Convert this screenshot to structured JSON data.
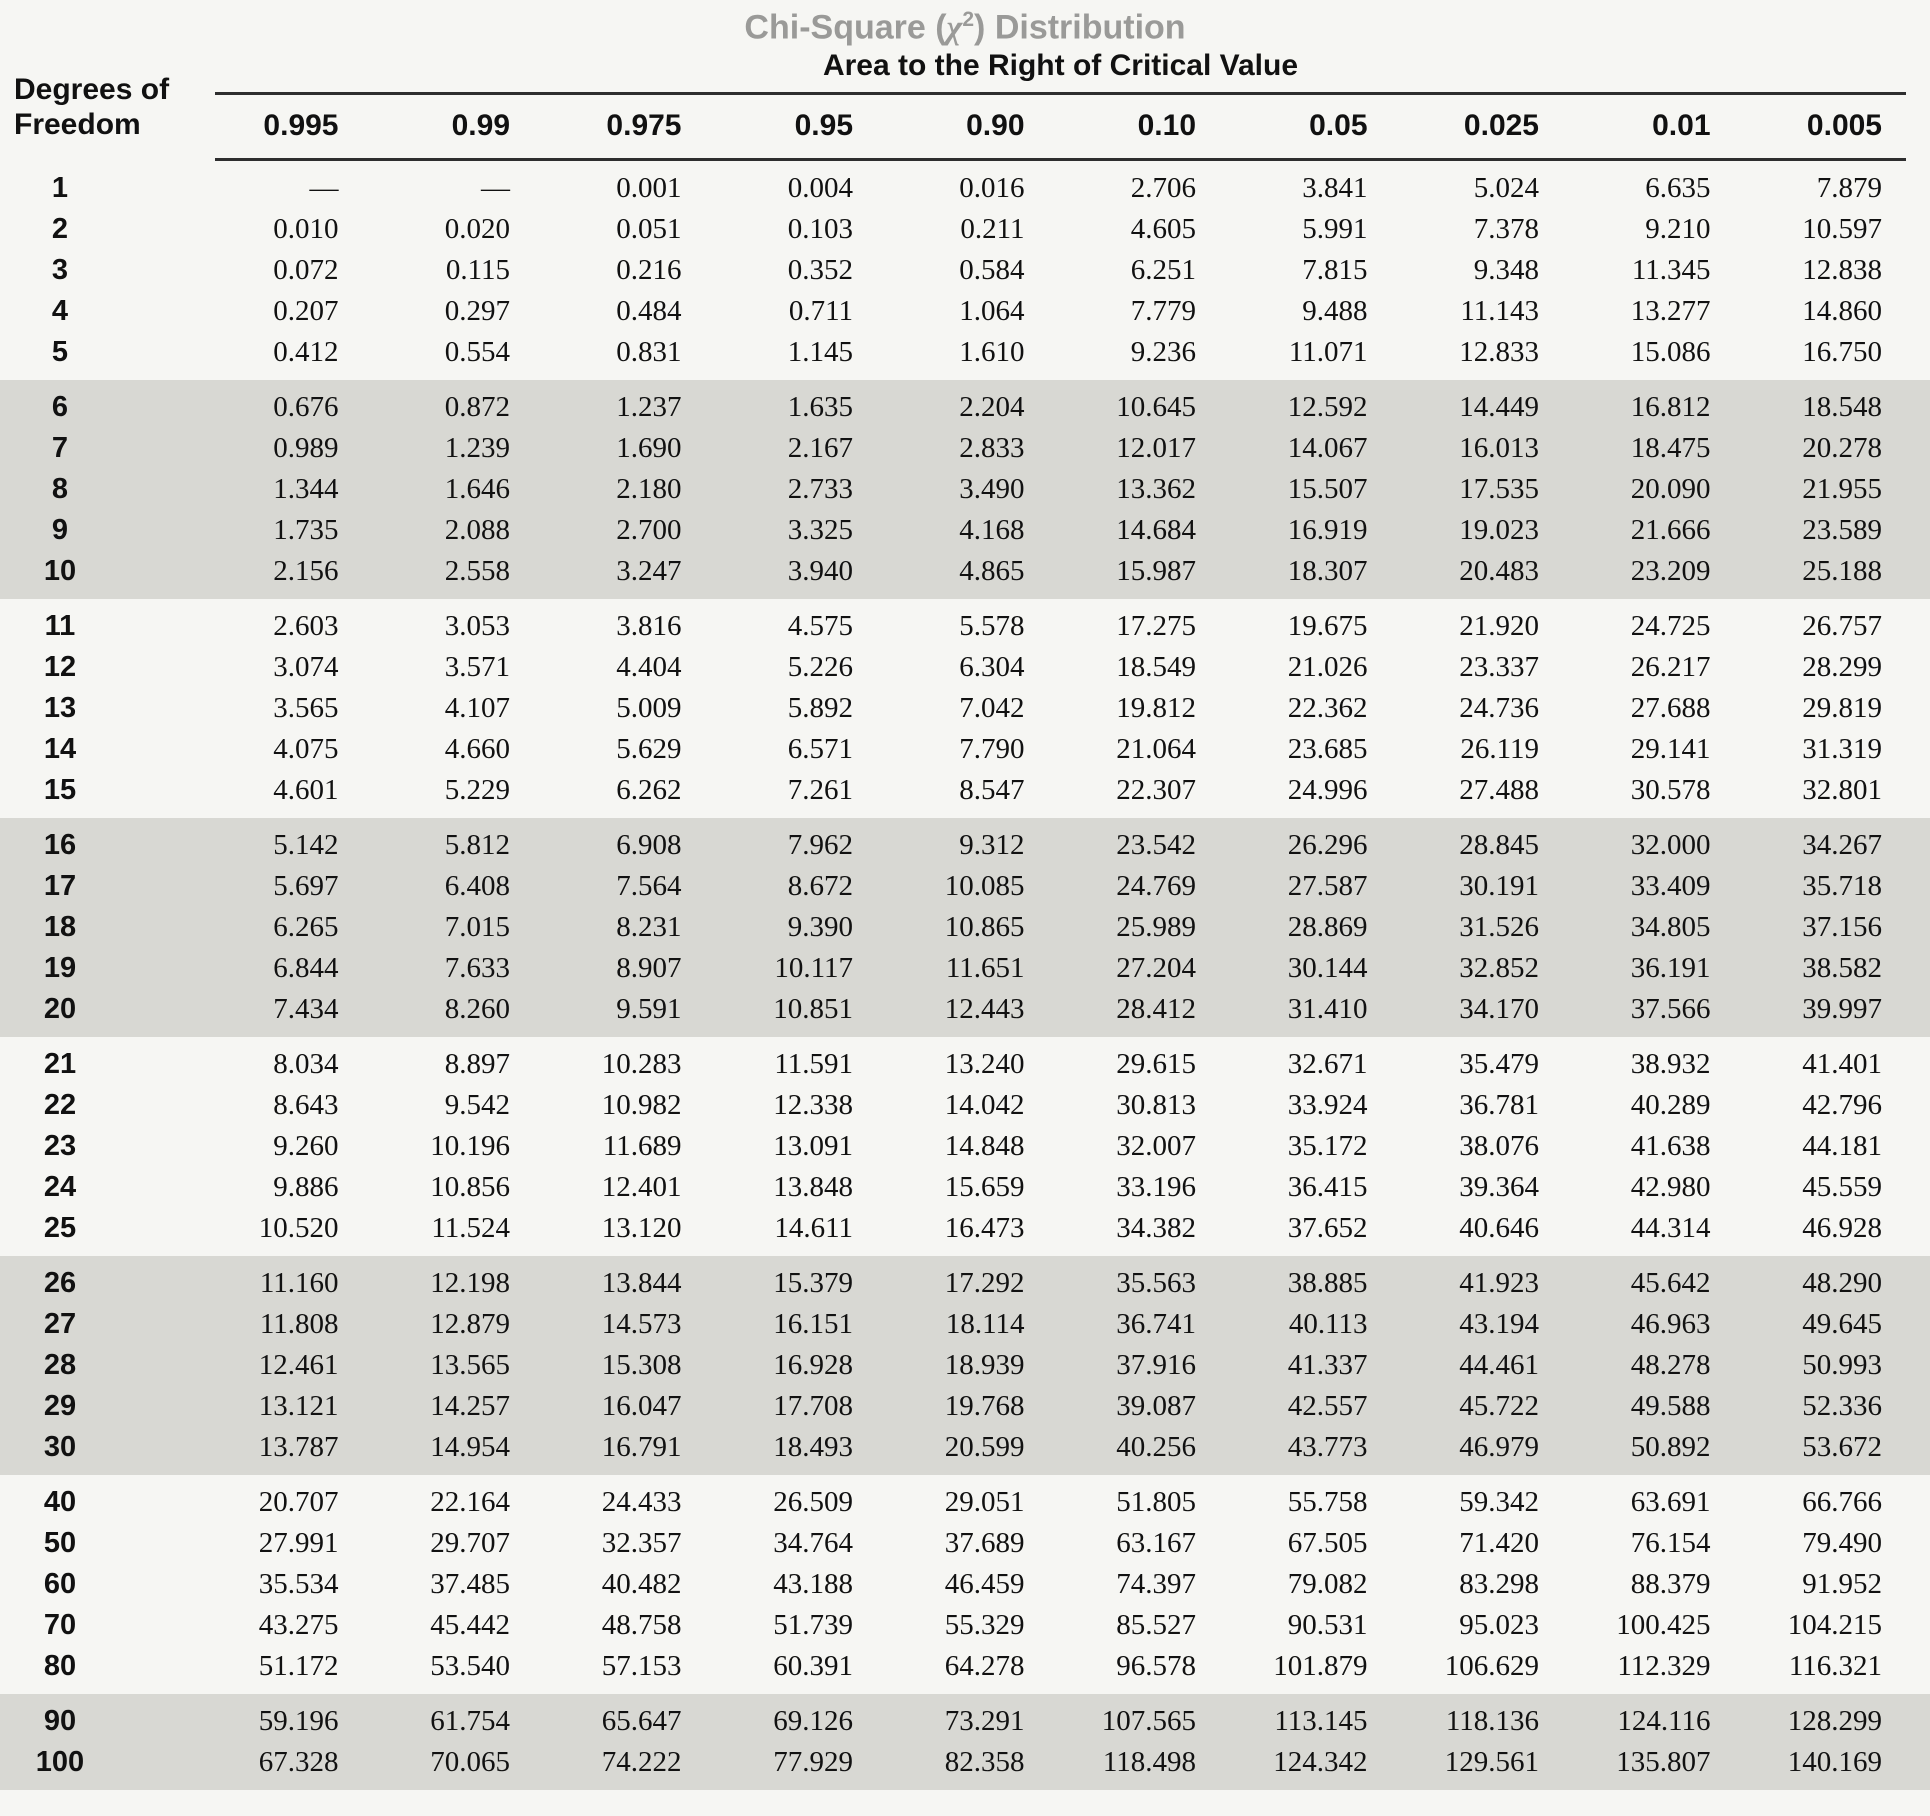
{
  "header": {
    "title_pre": "Chi-Square (",
    "title_chi": "χ",
    "title_exp": "2",
    "title_post": ") Distribution",
    "subtitle": "Area to the Right of Critical Value",
    "row_label_line1": "Degrees of",
    "row_label_line2": "Freedom"
  },
  "colors": {
    "page_bg": "#f6f6f3",
    "band_bg": "#d8d8d3",
    "title_gray": "#9a9a98",
    "rule": "#2e2e2e"
  },
  "table": {
    "columns": [
      "0.995",
      "0.99",
      "0.975",
      "0.95",
      "0.90",
      "0.10",
      "0.05",
      "0.025",
      "0.01",
      "0.005"
    ],
    "groups": [
      {
        "shaded": false,
        "rows": [
          {
            "df": "1",
            "values": [
              "—",
              "—",
              "0.001",
              "0.004",
              "0.016",
              "2.706",
              "3.841",
              "5.024",
              "6.635",
              "7.879"
            ]
          },
          {
            "df": "2",
            "values": [
              "0.010",
              "0.020",
              "0.051",
              "0.103",
              "0.211",
              "4.605",
              "5.991",
              "7.378",
              "9.210",
              "10.597"
            ]
          },
          {
            "df": "3",
            "values": [
              "0.072",
              "0.115",
              "0.216",
              "0.352",
              "0.584",
              "6.251",
              "7.815",
              "9.348",
              "11.345",
              "12.838"
            ]
          },
          {
            "df": "4",
            "values": [
              "0.207",
              "0.297",
              "0.484",
              "0.711",
              "1.064",
              "7.779",
              "9.488",
              "11.143",
              "13.277",
              "14.860"
            ]
          },
          {
            "df": "5",
            "values": [
              "0.412",
              "0.554",
              "0.831",
              "1.145",
              "1.610",
              "9.236",
              "11.071",
              "12.833",
              "15.086",
              "16.750"
            ]
          }
        ]
      },
      {
        "shaded": true,
        "rows": [
          {
            "df": "6",
            "values": [
              "0.676",
              "0.872",
              "1.237",
              "1.635",
              "2.204",
              "10.645",
              "12.592",
              "14.449",
              "16.812",
              "18.548"
            ]
          },
          {
            "df": "7",
            "values": [
              "0.989",
              "1.239",
              "1.690",
              "2.167",
              "2.833",
              "12.017",
              "14.067",
              "16.013",
              "18.475",
              "20.278"
            ]
          },
          {
            "df": "8",
            "values": [
              "1.344",
              "1.646",
              "2.180",
              "2.733",
              "3.490",
              "13.362",
              "15.507",
              "17.535",
              "20.090",
              "21.955"
            ]
          },
          {
            "df": "9",
            "values": [
              "1.735",
              "2.088",
              "2.700",
              "3.325",
              "4.168",
              "14.684",
              "16.919",
              "19.023",
              "21.666",
              "23.589"
            ]
          },
          {
            "df": "10",
            "values": [
              "2.156",
              "2.558",
              "3.247",
              "3.940",
              "4.865",
              "15.987",
              "18.307",
              "20.483",
              "23.209",
              "25.188"
            ]
          }
        ]
      },
      {
        "shaded": false,
        "rows": [
          {
            "df": "11",
            "values": [
              "2.603",
              "3.053",
              "3.816",
              "4.575",
              "5.578",
              "17.275",
              "19.675",
              "21.920",
              "24.725",
              "26.757"
            ]
          },
          {
            "df": "12",
            "values": [
              "3.074",
              "3.571",
              "4.404",
              "5.226",
              "6.304",
              "18.549",
              "21.026",
              "23.337",
              "26.217",
              "28.299"
            ]
          },
          {
            "df": "13",
            "values": [
              "3.565",
              "4.107",
              "5.009",
              "5.892",
              "7.042",
              "19.812",
              "22.362",
              "24.736",
              "27.688",
              "29.819"
            ]
          },
          {
            "df": "14",
            "values": [
              "4.075",
              "4.660",
              "5.629",
              "6.571",
              "7.790",
              "21.064",
              "23.685",
              "26.119",
              "29.141",
              "31.319"
            ]
          },
          {
            "df": "15",
            "values": [
              "4.601",
              "5.229",
              "6.262",
              "7.261",
              "8.547",
              "22.307",
              "24.996",
              "27.488",
              "30.578",
              "32.801"
            ]
          }
        ]
      },
      {
        "shaded": true,
        "rows": [
          {
            "df": "16",
            "values": [
              "5.142",
              "5.812",
              "6.908",
              "7.962",
              "9.312",
              "23.542",
              "26.296",
              "28.845",
              "32.000",
              "34.267"
            ]
          },
          {
            "df": "17",
            "values": [
              "5.697",
              "6.408",
              "7.564",
              "8.672",
              "10.085",
              "24.769",
              "27.587",
              "30.191",
              "33.409",
              "35.718"
            ]
          },
          {
            "df": "18",
            "values": [
              "6.265",
              "7.015",
              "8.231",
              "9.390",
              "10.865",
              "25.989",
              "28.869",
              "31.526",
              "34.805",
              "37.156"
            ]
          },
          {
            "df": "19",
            "values": [
              "6.844",
              "7.633",
              "8.907",
              "10.117",
              "11.651",
              "27.204",
              "30.144",
              "32.852",
              "36.191",
              "38.582"
            ]
          },
          {
            "df": "20",
            "values": [
              "7.434",
              "8.260",
              "9.591",
              "10.851",
              "12.443",
              "28.412",
              "31.410",
              "34.170",
              "37.566",
              "39.997"
            ]
          }
        ]
      },
      {
        "shaded": false,
        "rows": [
          {
            "df": "21",
            "values": [
              "8.034",
              "8.897",
              "10.283",
              "11.591",
              "13.240",
              "29.615",
              "32.671",
              "35.479",
              "38.932",
              "41.401"
            ]
          },
          {
            "df": "22",
            "values": [
              "8.643",
              "9.542",
              "10.982",
              "12.338",
              "14.042",
              "30.813",
              "33.924",
              "36.781",
              "40.289",
              "42.796"
            ]
          },
          {
            "df": "23",
            "values": [
              "9.260",
              "10.196",
              "11.689",
              "13.091",
              "14.848",
              "32.007",
              "35.172",
              "38.076",
              "41.638",
              "44.181"
            ]
          },
          {
            "df": "24",
            "values": [
              "9.886",
              "10.856",
              "12.401",
              "13.848",
              "15.659",
              "33.196",
              "36.415",
              "39.364",
              "42.980",
              "45.559"
            ]
          },
          {
            "df": "25",
            "values": [
              "10.520",
              "11.524",
              "13.120",
              "14.611",
              "16.473",
              "34.382",
              "37.652",
              "40.646",
              "44.314",
              "46.928"
            ]
          }
        ]
      },
      {
        "shaded": true,
        "rows": [
          {
            "df": "26",
            "values": [
              "11.160",
              "12.198",
              "13.844",
              "15.379",
              "17.292",
              "35.563",
              "38.885",
              "41.923",
              "45.642",
              "48.290"
            ]
          },
          {
            "df": "27",
            "values": [
              "11.808",
              "12.879",
              "14.573",
              "16.151",
              "18.114",
              "36.741",
              "40.113",
              "43.194",
              "46.963",
              "49.645"
            ]
          },
          {
            "df": "28",
            "values": [
              "12.461",
              "13.565",
              "15.308",
              "16.928",
              "18.939",
              "37.916",
              "41.337",
              "44.461",
              "48.278",
              "50.993"
            ]
          },
          {
            "df": "29",
            "values": [
              "13.121",
              "14.257",
              "16.047",
              "17.708",
              "19.768",
              "39.087",
              "42.557",
              "45.722",
              "49.588",
              "52.336"
            ]
          },
          {
            "df": "30",
            "values": [
              "13.787",
              "14.954",
              "16.791",
              "18.493",
              "20.599",
              "40.256",
              "43.773",
              "46.979",
              "50.892",
              "53.672"
            ]
          }
        ]
      },
      {
        "shaded": false,
        "rows": [
          {
            "df": "40",
            "values": [
              "20.707",
              "22.164",
              "24.433",
              "26.509",
              "29.051",
              "51.805",
              "55.758",
              "59.342",
              "63.691",
              "66.766"
            ]
          },
          {
            "df": "50",
            "values": [
              "27.991",
              "29.707",
              "32.357",
              "34.764",
              "37.689",
              "63.167",
              "67.505",
              "71.420",
              "76.154",
              "79.490"
            ]
          },
          {
            "df": "60",
            "values": [
              "35.534",
              "37.485",
              "40.482",
              "43.188",
              "46.459",
              "74.397",
              "79.082",
              "83.298",
              "88.379",
              "91.952"
            ]
          },
          {
            "df": "70",
            "values": [
              "43.275",
              "45.442",
              "48.758",
              "51.739",
              "55.329",
              "85.527",
              "90.531",
              "95.023",
              "100.425",
              "104.215"
            ]
          },
          {
            "df": "80",
            "values": [
              "51.172",
              "53.540",
              "57.153",
              "60.391",
              "64.278",
              "96.578",
              "101.879",
              "106.629",
              "112.329",
              "116.321"
            ]
          }
        ]
      },
      {
        "shaded": true,
        "rows": [
          {
            "df": "90",
            "values": [
              "59.196",
              "61.754",
              "65.647",
              "69.126",
              "73.291",
              "107.565",
              "113.145",
              "118.136",
              "124.116",
              "128.299"
            ]
          },
          {
            "df": "100",
            "values": [
              "67.328",
              "70.065",
              "74.222",
              "77.929",
              "82.358",
              "118.498",
              "124.342",
              "129.561",
              "135.807",
              "140.169"
            ]
          }
        ]
      }
    ]
  }
}
